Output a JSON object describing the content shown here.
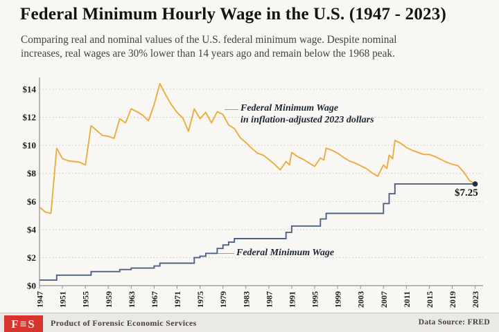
{
  "header": {
    "title": "Federal Minimum Hourly Wage in the U.S. (1947 - 2023)",
    "subtitle_line1": "Comparing real and nominal values of the U.S. federal minimum wage. Despite nominal",
    "subtitle_line2": "increases, real wages are 30% lower than 14 years ago and remain below the 1968 peak."
  },
  "annotations": {
    "real_line1": "Federal Minimum Wage",
    "real_line2": "in inflation-adjusted 2023 dollars",
    "nominal": "Federal Minimum Wage"
  },
  "chart_data": {
    "type": "line",
    "title": "Federal Minimum Hourly Wage in the U.S. (1947 - 2023)",
    "xlabel": "",
    "ylabel": "",
    "xlim": [
      1947,
      2023
    ],
    "ylim": [
      0,
      14.8
    ],
    "grid": "horizontal-dotted",
    "legend_position": "inline-annotations",
    "x_ticks": [
      1947,
      1951,
      1955,
      1959,
      1963,
      1967,
      1971,
      1975,
      1979,
      1983,
      1987,
      1991,
      1995,
      1999,
      2003,
      2007,
      2011,
      2015,
      2019,
      2023
    ],
    "y_ticks": [
      {
        "value": 0,
        "label": "$0"
      },
      {
        "value": 2,
        "label": "$2"
      },
      {
        "value": 4,
        "label": "$4"
      },
      {
        "value": 6,
        "label": "$6"
      },
      {
        "value": 8,
        "label": "$8"
      },
      {
        "value": 10,
        "label": "$10"
      },
      {
        "value": 12,
        "label": "$12"
      },
      {
        "value": 14,
        "label": "$14"
      }
    ],
    "series": [
      {
        "name": "Federal Minimum Wage in inflation-adjusted 2023 dollars",
        "color": "#ECAC3D",
        "style": "line",
        "points": [
          [
            1947,
            5.6
          ],
          [
            1948,
            5.25
          ],
          [
            1949,
            5.15
          ],
          [
            1950,
            9.8
          ],
          [
            1951,
            9.05
          ],
          [
            1952,
            8.9
          ],
          [
            1953,
            8.85
          ],
          [
            1954,
            8.8
          ],
          [
            1955,
            8.6
          ],
          [
            1956,
            11.4
          ],
          [
            1957,
            11.05
          ],
          [
            1958,
            10.7
          ],
          [
            1959,
            10.65
          ],
          [
            1960,
            10.5
          ],
          [
            1961,
            11.9
          ],
          [
            1962,
            11.6
          ],
          [
            1963,
            12.6
          ],
          [
            1964,
            12.4
          ],
          [
            1965,
            12.15
          ],
          [
            1966,
            11.75
          ],
          [
            1967,
            12.9
          ],
          [
            1968,
            14.4
          ],
          [
            1969,
            13.6
          ],
          [
            1970,
            12.9
          ],
          [
            1971,
            12.35
          ],
          [
            1972,
            11.95
          ],
          [
            1973,
            11.0
          ],
          [
            1974,
            12.6
          ],
          [
            1975,
            11.9
          ],
          [
            1976,
            12.35
          ],
          [
            1977,
            11.6
          ],
          [
            1978,
            12.4
          ],
          [
            1979,
            12.2
          ],
          [
            1980,
            11.45
          ],
          [
            1981,
            11.2
          ],
          [
            1982,
            10.55
          ],
          [
            1983,
            10.2
          ],
          [
            1984,
            9.8
          ],
          [
            1985,
            9.45
          ],
          [
            1986,
            9.3
          ],
          [
            1987,
            9.0
          ],
          [
            1988,
            8.65
          ],
          [
            1989,
            8.25
          ],
          [
            1990,
            8.85
          ],
          [
            1990.6,
            8.6
          ],
          [
            1991,
            9.5
          ],
          [
            1992,
            9.2
          ],
          [
            1993,
            9.0
          ],
          [
            1994,
            8.75
          ],
          [
            1995,
            8.5
          ],
          [
            1996,
            9.1
          ],
          [
            1996.6,
            8.95
          ],
          [
            1997,
            9.8
          ],
          [
            1998,
            9.65
          ],
          [
            1999,
            9.45
          ],
          [
            2000,
            9.15
          ],
          [
            2001,
            8.9
          ],
          [
            2002,
            8.75
          ],
          [
            2003,
            8.55
          ],
          [
            2004,
            8.35
          ],
          [
            2005,
            8.05
          ],
          [
            2006,
            7.8
          ],
          [
            2007,
            8.6
          ],
          [
            2007.6,
            8.35
          ],
          [
            2008,
            9.3
          ],
          [
            2008.6,
            9.05
          ],
          [
            2009,
            10.35
          ],
          [
            2010,
            10.15
          ],
          [
            2011,
            9.85
          ],
          [
            2012,
            9.65
          ],
          [
            2013,
            9.5
          ],
          [
            2014,
            9.35
          ],
          [
            2015,
            9.35
          ],
          [
            2016,
            9.2
          ],
          [
            2017,
            9.0
          ],
          [
            2018,
            8.8
          ],
          [
            2019,
            8.65
          ],
          [
            2020,
            8.55
          ],
          [
            2021,
            8.1
          ],
          [
            2022,
            7.5
          ],
          [
            2023,
            7.25
          ]
        ]
      },
      {
        "name": "Federal Minimum Wage",
        "color": "#4E6180",
        "style": "step",
        "points": [
          [
            1947,
            0.4
          ],
          [
            1950,
            0.75
          ],
          [
            1956,
            1.0
          ],
          [
            1961,
            1.15
          ],
          [
            1963,
            1.25
          ],
          [
            1967,
            1.4
          ],
          [
            1968,
            1.6
          ],
          [
            1974,
            2.0
          ],
          [
            1975,
            2.1
          ],
          [
            1976,
            2.3
          ],
          [
            1978,
            2.65
          ],
          [
            1979,
            2.9
          ],
          [
            1980,
            3.1
          ],
          [
            1981,
            3.35
          ],
          [
            1990,
            3.8
          ],
          [
            1991,
            4.25
          ],
          [
            1996,
            4.75
          ],
          [
            1997,
            5.15
          ],
          [
            2007,
            5.85
          ],
          [
            2008,
            6.55
          ],
          [
            2009,
            7.25
          ],
          [
            2023,
            7.25
          ]
        ]
      }
    ],
    "end_point": {
      "year": 2023,
      "value": 7.25,
      "label": "$7.25",
      "color": "#20304a"
    }
  },
  "footer": {
    "logo_text": "F≡S",
    "logo_color": "#d7342e",
    "left_text": "Product of Forensic Economic Services",
    "right_text": "Data Source: FRED"
  },
  "colors": {
    "background": "#f8f7f4",
    "real_line": "#ECAC3D",
    "nominal_line": "#4E6180",
    "grid": "#c9c7c2",
    "spine": "#8f8d88"
  }
}
